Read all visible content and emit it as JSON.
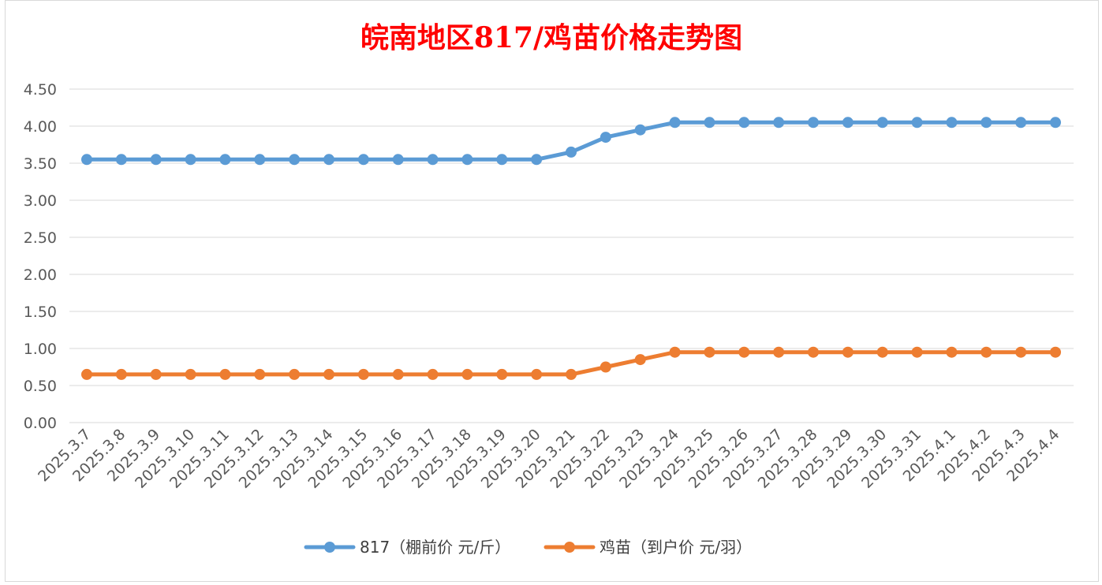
{
  "chart_data": {
    "type": "line",
    "title": "皖南地区817/鸡苗价格走势图",
    "xlabel": "",
    "ylabel": "",
    "ylim": [
      0,
      4.5
    ],
    "yticks": [
      "0.00",
      "0.50",
      "1.00",
      "1.50",
      "2.00",
      "2.50",
      "3.00",
      "3.50",
      "4.00",
      "4.50"
    ],
    "grid": true,
    "legend_position": "bottom",
    "categories": [
      "2025.3.7",
      "2025.3.8",
      "2025.3.9",
      "2025.3.10",
      "2025.3.11",
      "2025.3.12",
      "2025.3.13",
      "2025.3.14",
      "2025.3.15",
      "2025.3.16",
      "2025.3.17",
      "2025.3.18",
      "2025.3.19",
      "2025.3.20",
      "2025.3.21",
      "2025.3.22",
      "2025.3.23",
      "2025.3.24",
      "2025.3.25",
      "2025.3.26",
      "2025.3.27",
      "2025.3.28",
      "2025.3.29",
      "2025.3.30",
      "2025.3.31",
      "2025.4.1",
      "2025.4.2",
      "2025.4.3",
      "2025.4.4"
    ],
    "series": [
      {
        "name": "817（棚前价 元/斤）",
        "color": "#5b9bd5",
        "values": [
          3.55,
          3.55,
          3.55,
          3.55,
          3.55,
          3.55,
          3.55,
          3.55,
          3.55,
          3.55,
          3.55,
          3.55,
          3.55,
          3.55,
          3.65,
          3.85,
          3.95,
          4.05,
          4.05,
          4.05,
          4.05,
          4.05,
          4.05,
          4.05,
          4.05,
          4.05,
          4.05,
          4.05,
          4.05
        ]
      },
      {
        "name": "鸡苗（到户价 元/羽）",
        "color": "#ed7d31",
        "values": [
          0.65,
          0.65,
          0.65,
          0.65,
          0.65,
          0.65,
          0.65,
          0.65,
          0.65,
          0.65,
          0.65,
          0.65,
          0.65,
          0.65,
          0.65,
          0.75,
          0.85,
          0.95,
          0.95,
          0.95,
          0.95,
          0.95,
          0.95,
          0.95,
          0.95,
          0.95,
          0.95,
          0.95,
          0.95
        ]
      }
    ]
  }
}
